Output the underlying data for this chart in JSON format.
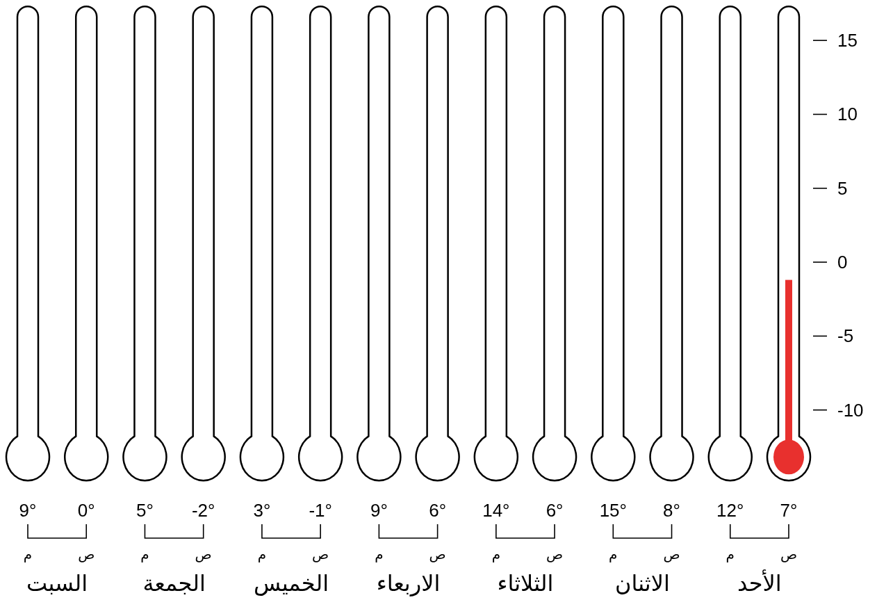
{
  "chart_data": {
    "type": "bar",
    "categories": [
      "م",
      "ص",
      "م",
      "ص",
      "م",
      "ص",
      "م",
      "ص",
      "م",
      "ص",
      "م",
      "ص",
      "م",
      "ص"
    ],
    "values": [
      null,
      null,
      null,
      null,
      null,
      null,
      null,
      null,
      null,
      null,
      null,
      null,
      null,
      13.1
    ],
    "base": [
      null,
      null,
      null,
      null,
      null,
      null,
      null,
      null,
      null,
      null,
      null,
      null,
      null,
      -14.3
    ],
    "color": "#e8302e",
    "ylim": [
      -15,
      17.5
    ],
    "yticks": [
      -10,
      -5,
      0,
      5,
      10,
      15
    ],
    "annotations": [
      "9°",
      "0°",
      "5°",
      "-2°",
      "3°",
      "-1°",
      "9°",
      "6°",
      "14°",
      "6°",
      "15°",
      "8°",
      "12°",
      "7°",
      "السبت",
      "الجمعة",
      "الخميس",
      "الاربعاء",
      "الثلاثاء",
      "الاثنان",
      "الأحد"
    ]
  }
}
